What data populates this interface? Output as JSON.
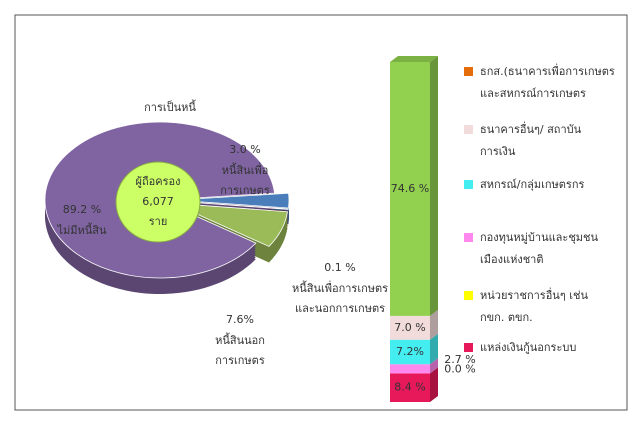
{
  "chart_data": [
    {
      "type": "pie",
      "title": "การเป็นหนี้",
      "center_label": [
        "ผู้ถือครอง",
        "6,077",
        "ราย"
      ],
      "categories": [
        [
          "หนี้สินเพื่อ",
          "การเกษตร"
        ],
        [
          "หนี้สินเพื่อการเกษตร",
          "และนอกการเกษตร"
        ],
        [
          "หนี้สินนอก",
          "การเกษตร"
        ],
        [
          "ไม่มีหนี้สิน"
        ]
      ],
      "values": [
        3.0,
        0.1,
        7.6,
        89.2
      ],
      "value_labels": [
        "3.0 %",
        "0.1 %",
        "7.6%",
        "89.2 %"
      ],
      "colors": [
        "#4a7ebb",
        "#9b1f1f",
        "#9bbb59",
        "#8064a2"
      ]
    },
    {
      "type": "stacked-bar",
      "series": [
        {
          "name": [
            "แหล่งเงินกู้นอกระบบ"
          ],
          "color": "#e8195a",
          "legend_color": "#e8195a",
          "values": [
            8.4
          ],
          "value_labels": [
            "8.4 %"
          ]
        },
        {
          "name": [
            "หน่วยราชการอื่นๆ เช่น",
            "กขก. ตขก."
          ],
          "color": "#ffff00",
          "legend_color": "#ffff00",
          "values": [
            0.0
          ],
          "value_labels": [
            "0.0 %"
          ]
        },
        {
          "name": [
            "กองทุนหมู่บ้านและชุมชน",
            "เมืองแห่งชาติ"
          ],
          "color": "#ff88ee",
          "legend_color": "#ff88ee",
          "values": [
            2.7
          ],
          "value_labels": [
            "2.7 %"
          ]
        },
        {
          "name": [
            "สหกรณ์/กลุ่มเกษตรกร"
          ],
          "color": "#44eef0",
          "legend_color": "#44eef0",
          "values": [
            7.2
          ],
          "value_labels": [
            "7.2%"
          ]
        },
        {
          "name": [
            "ธนาคารอื่นๆ/ สถาบัน",
            "การเงิน"
          ],
          "color": "#f2dcdb",
          "legend_color": "#f2dcdb",
          "values": [
            7.0
          ],
          "value_labels": [
            "7.0 %"
          ]
        },
        {
          "name": [
            "ธกส.(ธนาคารเพื่อการเกษตร",
            "และสหกรณ์การเกษตร"
          ],
          "color": "#92d050",
          "legend_color": "#e46c0a",
          "values": [
            74.6
          ],
          "value_labels": [
            "74.6 %"
          ]
        }
      ]
    }
  ]
}
